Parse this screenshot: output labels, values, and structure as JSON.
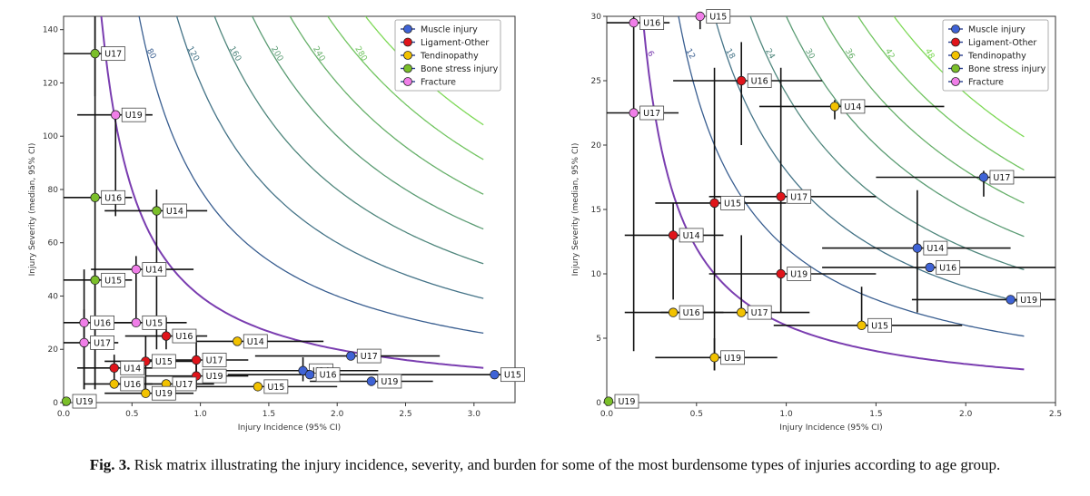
{
  "caption": {
    "label": "Fig. 3.",
    "text": "Risk matrix illustrating the injury incidence, severity, and burden for some of the most burdensome types of injuries according to age group."
  },
  "colors": {
    "Muscle injury": "#3f63d6",
    "Ligament-Other": "#e0141a",
    "Tendinopathy": "#f2c200",
    "Bone stress injury": "#7bbf2a",
    "Fracture": "#f07ee8"
  },
  "chart_data": [
    {
      "type": "scatter",
      "xlabel": "Injury Incidence (95% CI)",
      "ylabel": "Injury Severity (median, 95% CI)",
      "xlim": [
        0,
        3.3
      ],
      "ylim": [
        0,
        145
      ],
      "xticks": [
        "0.0",
        "0.5",
        "1.0",
        "1.5",
        "2.0",
        "2.5",
        "3.0"
      ],
      "yticks": [
        "0",
        "20",
        "40",
        "60",
        "80",
        "100",
        "120",
        "140"
      ],
      "legend": [
        "Muscle injury",
        "Ligament-Other",
        "Tendinopathy",
        "Bone stress injury",
        "Fracture"
      ],
      "legend_position": "top-right",
      "contours": [
        40,
        80,
        120,
        160,
        200,
        240,
        280,
        320
      ],
      "contour_labels": [
        "40",
        "80",
        "120",
        "160",
        "200",
        "240",
        "280",
        "320"
      ],
      "highlight_contour": 40,
      "points": [
        {
          "cat": "Muscle injury",
          "label": "U15",
          "x": 3.15,
          "y": 10.5,
          "xci": [
            2.3,
            3.3
          ],
          "yci": [
            null,
            null
          ]
        },
        {
          "cat": "Muscle injury",
          "label": "U17",
          "x": 2.1,
          "y": 17.5,
          "xci": [
            1.4,
            2.75
          ],
          "yci": [
            null,
            null
          ]
        },
        {
          "cat": "Muscle injury",
          "label": "U14",
          "x": 1.75,
          "y": 12,
          "xci": [
            1.15,
            2.3
          ],
          "yci": [
            8,
            17
          ]
        },
        {
          "cat": "Muscle injury",
          "label": "U16",
          "x": 1.8,
          "y": 10.5,
          "xci": [
            1.2,
            2.3
          ],
          "yci": [
            null,
            null
          ]
        },
        {
          "cat": "Muscle injury",
          "label": "U19",
          "x": 2.25,
          "y": 8,
          "xci": [
            1.8,
            2.7
          ],
          "yci": [
            null,
            null
          ]
        },
        {
          "cat": "Ligament-Other",
          "label": "U16",
          "x": 0.75,
          "y": 25,
          "xci": [
            0.45,
            1.05
          ],
          "yci": [
            20,
            32
          ]
        },
        {
          "cat": "Ligament-Other",
          "label": "U17",
          "x": 0.97,
          "y": 16,
          "xci": [
            0.6,
            1.35
          ],
          "yci": [
            8,
            25
          ]
        },
        {
          "cat": "Ligament-Other",
          "label": "U15",
          "x": 0.6,
          "y": 15.5,
          "xci": [
            0.3,
            0.95
          ],
          "yci": [
            5,
            25
          ]
        },
        {
          "cat": "Ligament-Other",
          "label": "U14",
          "x": 0.37,
          "y": 13,
          "xci": [
            0.1,
            0.65
          ],
          "yci": [
            8,
            18
          ]
        },
        {
          "cat": "Ligament-Other",
          "label": "U19",
          "x": 0.97,
          "y": 10,
          "xci": [
            0.6,
            1.35
          ],
          "yci": [
            5,
            16
          ]
        },
        {
          "cat": "Tendinopathy",
          "label": "U14",
          "x": 1.27,
          "y": 23,
          "xci": [
            0.9,
            1.9
          ],
          "yci": [
            null,
            null
          ]
        },
        {
          "cat": "Tendinopathy",
          "label": "U16",
          "x": 0.37,
          "y": 7,
          "xci": [
            0.15,
            0.65
          ],
          "yci": [
            null,
            null
          ]
        },
        {
          "cat": "Tendinopathy",
          "label": "U17",
          "x": 0.75,
          "y": 7,
          "xci": [
            0.35,
            1.1
          ],
          "yci": [
            null,
            null
          ]
        },
        {
          "cat": "Tendinopathy",
          "label": "U15",
          "x": 1.42,
          "y": 6,
          "xci": [
            0.95,
            2.0
          ],
          "yci": [
            null,
            null
          ]
        },
        {
          "cat": "Tendinopathy",
          "label": "U19",
          "x": 0.6,
          "y": 3.5,
          "xci": [
            0.3,
            0.95
          ],
          "yci": [
            null,
            null
          ]
        },
        {
          "cat": "Bone stress injury",
          "label": "U17",
          "x": 0.23,
          "y": 131,
          "xci": [
            0,
            0.45
          ],
          "yci": [
            115,
            145
          ]
        },
        {
          "cat": "Bone stress injury",
          "label": "U14",
          "x": 0.68,
          "y": 72,
          "xci": [
            0.3,
            1.05
          ],
          "yci": [
            20,
            80
          ]
        },
        {
          "cat": "Bone stress injury",
          "label": "U16",
          "x": 0.23,
          "y": 77,
          "xci": [
            0,
            0.5
          ],
          "yci": [
            5,
            145
          ]
        },
        {
          "cat": "Bone stress injury",
          "label": "U15",
          "x": 0.23,
          "y": 46,
          "xci": [
            0,
            0.5
          ],
          "yci": [
            5,
            50
          ]
        },
        {
          "cat": "Bone stress injury",
          "label": "U19",
          "x": 0.02,
          "y": 0.5,
          "xci": [
            null,
            null
          ],
          "yci": [
            null,
            null
          ]
        },
        {
          "cat": "Fracture",
          "label": "U19",
          "x": 0.38,
          "y": 108,
          "xci": [
            0.1,
            0.65
          ],
          "yci": [
            70,
            108
          ]
        },
        {
          "cat": "Fracture",
          "label": "U14",
          "x": 0.53,
          "y": 50,
          "xci": [
            0.2,
            0.95
          ],
          "yci": [
            30,
            55
          ]
        },
        {
          "cat": "Fracture",
          "label": "U16",
          "x": 0.15,
          "y": 30,
          "xci": [
            0,
            0.5
          ],
          "yci": [
            5,
            50
          ]
        },
        {
          "cat": "Fracture",
          "label": "U15",
          "x": 0.53,
          "y": 30,
          "xci": [
            0.2,
            0.9
          ],
          "yci": [
            null,
            null
          ]
        },
        {
          "cat": "Fracture",
          "label": "U17",
          "x": 0.15,
          "y": 22.5,
          "xci": [
            0,
            0.4
          ],
          "yci": [
            5,
            35
          ]
        }
      ]
    },
    {
      "type": "scatter",
      "xlabel": "Injury Incidence (95% CI)",
      "ylabel": "Injury Severity (median, 95% CI)",
      "xlim": [
        0,
        2.5
      ],
      "ylim": [
        0,
        30
      ],
      "xticks": [
        "0.0",
        "0.5",
        "1.0",
        "1.5",
        "2.0",
        "2.5"
      ],
      "yticks": [
        "0",
        "5",
        "10",
        "15",
        "20",
        "25",
        "30"
      ],
      "legend": [
        "Muscle injury",
        "Ligament-Other",
        "Tendinopathy",
        "Bone stress injury",
        "Fracture"
      ],
      "legend_position": "top-right",
      "contours": [
        6,
        12,
        18,
        24,
        30,
        36,
        42,
        48
      ],
      "contour_labels": [
        "6",
        "12",
        "18",
        "24",
        "30",
        "36",
        "42",
        "48"
      ],
      "highlight_contour": 6,
      "points": [
        {
          "cat": "Muscle injury",
          "label": "U17",
          "x": 2.1,
          "y": 17.5,
          "xci": [
            1.5,
            2.5
          ],
          "yci": [
            16,
            18
          ]
        },
        {
          "cat": "Muscle injury",
          "label": "U14",
          "x": 1.73,
          "y": 12,
          "xci": [
            1.2,
            2.25
          ],
          "yci": [
            7,
            16.5
          ]
        },
        {
          "cat": "Muscle injury",
          "label": "U16",
          "x": 1.8,
          "y": 10.5,
          "xci": [
            1.2,
            2.5
          ],
          "yci": [
            null,
            null
          ]
        },
        {
          "cat": "Muscle injury",
          "label": "U19",
          "x": 2.25,
          "y": 8,
          "xci": [
            1.7,
            2.5
          ],
          "yci": [
            null,
            null
          ]
        },
        {
          "cat": "Ligament-Other",
          "label": "U16",
          "x": 0.75,
          "y": 25,
          "xci": [
            0.37,
            1.2
          ],
          "yci": [
            20,
            28
          ]
        },
        {
          "cat": "Ligament-Other",
          "label": "U17",
          "x": 0.97,
          "y": 16,
          "xci": [
            0.57,
            1.5
          ],
          "yci": [
            7,
            26
          ]
        },
        {
          "cat": "Ligament-Other",
          "label": "U15",
          "x": 0.6,
          "y": 15.5,
          "xci": [
            0.27,
            1.0
          ],
          "yci": [
            2.5,
            26
          ]
        },
        {
          "cat": "Ligament-Other",
          "label": "U14",
          "x": 0.37,
          "y": 13,
          "xci": [
            0.1,
            0.65
          ],
          "yci": [
            8,
            15.5
          ]
        },
        {
          "cat": "Ligament-Other",
          "label": "U19",
          "x": 0.97,
          "y": 10,
          "xci": [
            0.57,
            1.5
          ],
          "yci": [
            null,
            null
          ]
        },
        {
          "cat": "Tendinopathy",
          "label": "U14",
          "x": 1.27,
          "y": 23,
          "xci": [
            0.85,
            1.88
          ],
          "yci": [
            22,
            23.5
          ]
        },
        {
          "cat": "Tendinopathy",
          "label": "U16",
          "x": 0.37,
          "y": 7,
          "xci": [
            0.1,
            0.65
          ],
          "yci": [
            null,
            null
          ]
        },
        {
          "cat": "Tendinopathy",
          "label": "U17",
          "x": 0.75,
          "y": 7,
          "xci": [
            0.3,
            1.13
          ],
          "yci": [
            null,
            13
          ]
        },
        {
          "cat": "Tendinopathy",
          "label": "U15",
          "x": 1.42,
          "y": 6,
          "xci": [
            0.93,
            1.98
          ],
          "yci": [
            null,
            9
          ]
        },
        {
          "cat": "Tendinopathy",
          "label": "U19",
          "x": 0.6,
          "y": 3.5,
          "xci": [
            0.27,
            0.95
          ],
          "yci": [
            2.5,
            5
          ]
        },
        {
          "cat": "Bone stress injury",
          "label": "U19",
          "x": 0.01,
          "y": 0.1,
          "xci": [
            null,
            null
          ],
          "yci": [
            null,
            null
          ]
        },
        {
          "cat": "Fracture",
          "label": "U16",
          "x": 0.15,
          "y": 29.5,
          "xci": [
            0,
            0.35
          ],
          "yci": [
            4,
            30
          ]
        },
        {
          "cat": "Fracture",
          "label": "U17",
          "x": 0.15,
          "y": 22.5,
          "xci": [
            0,
            0.4
          ],
          "yci": [
            null,
            null
          ]
        },
        {
          "cat": "Fracture",
          "label": "U15",
          "x": 0.52,
          "y": 30,
          "xci": [
            null,
            null
          ],
          "yci": [
            29,
            30
          ]
        }
      ]
    }
  ]
}
